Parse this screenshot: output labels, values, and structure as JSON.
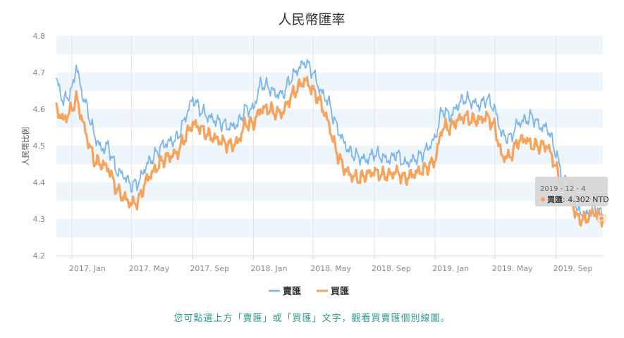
{
  "chart_data": {
    "type": "line",
    "title": "人民幣匯率",
    "ylabel": "人民幣比例",
    "ylim": [
      4.2,
      4.8
    ],
    "yticks": [
      "4.2",
      "4.3",
      "4.4",
      "4.5",
      "4.6",
      "4.7",
      "4.8"
    ],
    "xtick_labels": [
      "2017. Jan",
      "2017. May",
      "2017. Sep",
      "2018. Jan",
      "2018. May",
      "2018. Sep",
      "2019. Jan",
      "2019. May",
      "2019. Sep"
    ],
    "x_start": "2016-12-01",
    "x_end": "2019-12-04",
    "grid": "alternating horizontal bands",
    "legend_position": "bottom-center",
    "colors": {
      "sell": "#7cb5ec",
      "buy": "#f7a35c",
      "band": "#eef5fb"
    },
    "series": [
      {
        "name": "賣匯",
        "x": [
          "2016-12-01",
          "2016-12-15",
          "2017-01-01",
          "2017-01-10",
          "2017-01-20",
          "2017-02-01",
          "2017-02-15",
          "2017-03-01",
          "2017-03-15",
          "2017-04-01",
          "2017-04-15",
          "2017-05-01",
          "2017-05-15",
          "2017-06-01",
          "2017-06-15",
          "2017-07-01",
          "2017-07-15",
          "2017-08-01",
          "2017-08-15",
          "2017-09-01",
          "2017-09-15",
          "2017-10-01",
          "2017-10-15",
          "2017-11-01",
          "2017-11-15",
          "2017-12-01",
          "2017-12-15",
          "2018-01-01",
          "2018-01-15",
          "2018-02-01",
          "2018-02-15",
          "2018-03-01",
          "2018-03-15",
          "2018-04-01",
          "2018-04-15",
          "2018-05-01",
          "2018-05-15",
          "2018-06-01",
          "2018-06-15",
          "2018-07-01",
          "2018-07-15",
          "2018-08-01",
          "2018-08-15",
          "2018-09-01",
          "2018-09-15",
          "2018-10-01",
          "2018-10-15",
          "2018-11-01",
          "2018-11-15",
          "2018-12-01",
          "2018-12-15",
          "2019-01-01",
          "2019-01-15",
          "2019-02-01",
          "2019-02-15",
          "2019-03-01",
          "2019-03-15",
          "2019-04-01",
          "2019-04-15",
          "2019-05-01",
          "2019-05-15",
          "2019-06-01",
          "2019-06-15",
          "2019-07-01",
          "2019-07-15",
          "2019-08-01",
          "2019-08-15",
          "2019-09-01",
          "2019-09-15",
          "2019-10-01",
          "2019-10-15",
          "2019-11-01",
          "2019-11-15",
          "2019-12-04"
        ],
        "values": [
          4.68,
          4.62,
          4.65,
          4.72,
          4.65,
          4.6,
          4.53,
          4.49,
          4.5,
          4.43,
          4.42,
          4.39,
          4.4,
          4.45,
          4.47,
          4.5,
          4.51,
          4.52,
          4.57,
          4.63,
          4.6,
          4.58,
          4.57,
          4.56,
          4.55,
          4.56,
          4.6,
          4.6,
          4.67,
          4.66,
          4.64,
          4.64,
          4.68,
          4.71,
          4.73,
          4.7,
          4.65,
          4.62,
          4.56,
          4.51,
          4.48,
          4.47,
          4.46,
          4.48,
          4.47,
          4.46,
          4.48,
          4.45,
          4.46,
          4.47,
          4.49,
          4.52,
          4.6,
          4.58,
          4.61,
          4.63,
          4.62,
          4.61,
          4.63,
          4.6,
          4.53,
          4.52,
          4.56,
          4.57,
          4.58,
          4.55,
          4.55,
          4.48,
          4.41,
          4.4,
          4.32,
          4.31,
          4.33,
          4.31
        ]
      },
      {
        "name": "買匯",
        "x": [
          "2016-12-01",
          "2016-12-15",
          "2017-01-01",
          "2017-01-10",
          "2017-01-20",
          "2017-02-01",
          "2017-02-15",
          "2017-03-01",
          "2017-03-15",
          "2017-04-01",
          "2017-04-15",
          "2017-05-01",
          "2017-05-15",
          "2017-06-01",
          "2017-06-15",
          "2017-07-01",
          "2017-07-15",
          "2017-08-01",
          "2017-08-15",
          "2017-09-01",
          "2017-09-15",
          "2017-10-01",
          "2017-10-15",
          "2017-11-01",
          "2017-11-15",
          "2017-12-01",
          "2017-12-15",
          "2018-01-01",
          "2018-01-15",
          "2018-02-01",
          "2018-02-15",
          "2018-03-01",
          "2018-03-15",
          "2018-04-01",
          "2018-04-15",
          "2018-05-01",
          "2018-05-15",
          "2018-06-01",
          "2018-06-15",
          "2018-07-01",
          "2018-07-15",
          "2018-08-01",
          "2018-08-15",
          "2018-09-01",
          "2018-09-15",
          "2018-10-01",
          "2018-10-15",
          "2018-11-01",
          "2018-11-15",
          "2018-12-01",
          "2018-12-15",
          "2019-01-01",
          "2019-01-15",
          "2019-02-01",
          "2019-02-15",
          "2019-03-01",
          "2019-03-15",
          "2019-04-01",
          "2019-04-15",
          "2019-05-01",
          "2019-05-15",
          "2019-06-01",
          "2019-06-15",
          "2019-07-01",
          "2019-07-15",
          "2019-08-01",
          "2019-08-15",
          "2019-09-01",
          "2019-09-15",
          "2019-10-01",
          "2019-10-15",
          "2019-11-01",
          "2019-11-15",
          "2019-12-04"
        ],
        "values": [
          4.6,
          4.57,
          4.6,
          4.63,
          4.58,
          4.52,
          4.46,
          4.45,
          4.44,
          4.38,
          4.36,
          4.34,
          4.35,
          4.41,
          4.43,
          4.46,
          4.47,
          4.48,
          4.52,
          4.56,
          4.55,
          4.53,
          4.52,
          4.51,
          4.5,
          4.51,
          4.56,
          4.56,
          4.6,
          4.6,
          4.59,
          4.59,
          4.63,
          4.66,
          4.68,
          4.65,
          4.62,
          4.56,
          4.49,
          4.44,
          4.42,
          4.41,
          4.42,
          4.43,
          4.42,
          4.42,
          4.43,
          4.41,
          4.42,
          4.43,
          4.44,
          4.46,
          4.55,
          4.55,
          4.57,
          4.58,
          4.57,
          4.57,
          4.58,
          4.55,
          4.47,
          4.47,
          4.51,
          4.52,
          4.5,
          4.5,
          4.5,
          4.44,
          4.38,
          4.35,
          4.3,
          4.3,
          4.32,
          4.302
        ]
      }
    ]
  },
  "tooltip": {
    "date": "2019 - 12 - 4",
    "label": "買匯",
    "value": ": 4.302 NTD",
    "x": "2019-12-04",
    "y": 4.302
  },
  "legend": {
    "sell": "賣匯",
    "buy": "買匯"
  },
  "note": "您可點選上方「賣匯」或「買匯」文字，觀看買賣匯個別線圖。"
}
